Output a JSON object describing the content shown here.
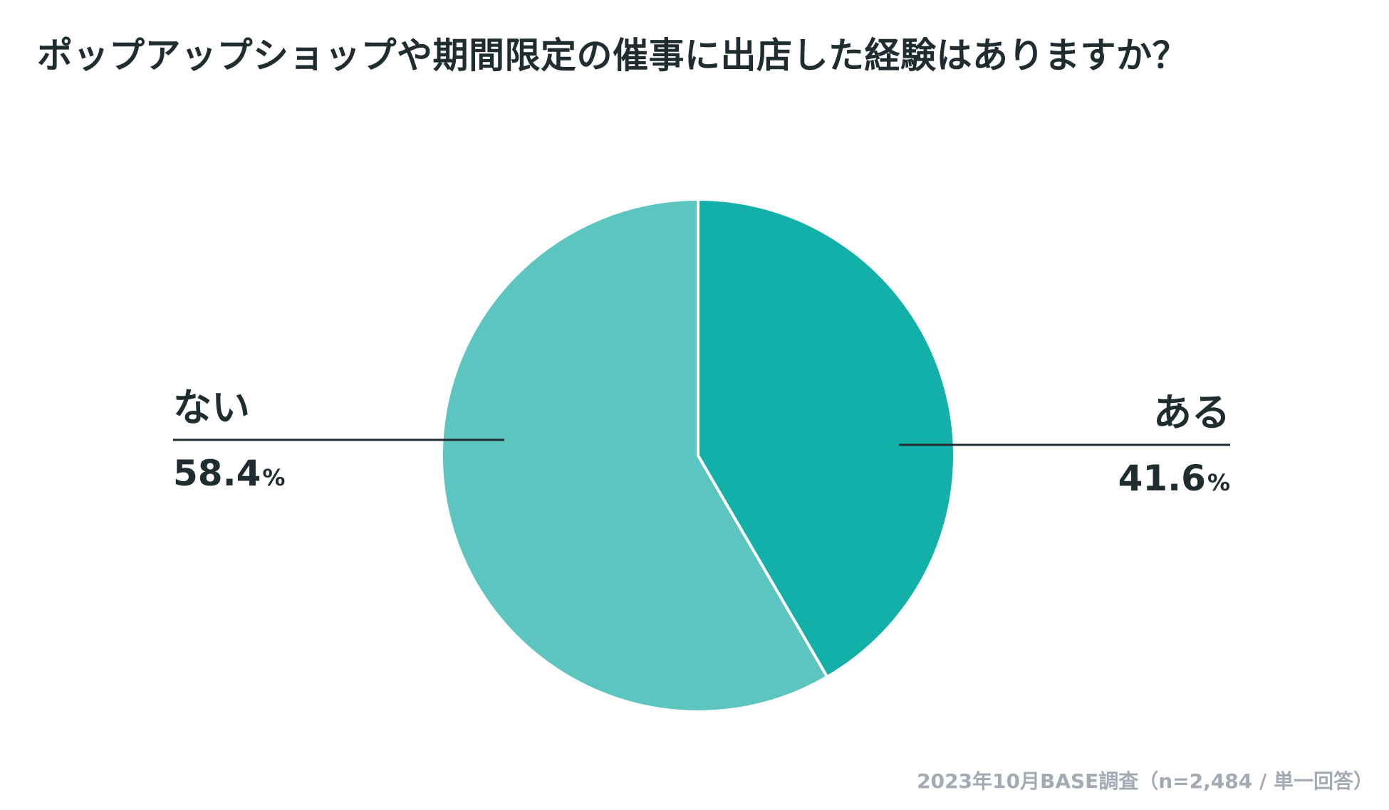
{
  "title": "ポップアップショップや期間限定の催事に出店した経験はありますか？",
  "footer": "2023年10月BASE調査（n=2,484 / 単一回答）",
  "colors": {
    "aru": "#12b0a9",
    "nai": "#5dc5bf",
    "text": "#1f2d30",
    "footer": "#a3aab3"
  },
  "chart_data": {
    "type": "pie",
    "title": "ポップアップショップや期間限定の催事に出店した経験はありますか？",
    "slices": [
      {
        "label": "ある",
        "value": 41.6,
        "display": "41.6",
        "unit": "%"
      },
      {
        "label": "ない",
        "value": 58.4,
        "display": "58.4",
        "unit": "%"
      }
    ],
    "start": "12 o'clock",
    "direction": "clockwise",
    "legend": "none"
  }
}
